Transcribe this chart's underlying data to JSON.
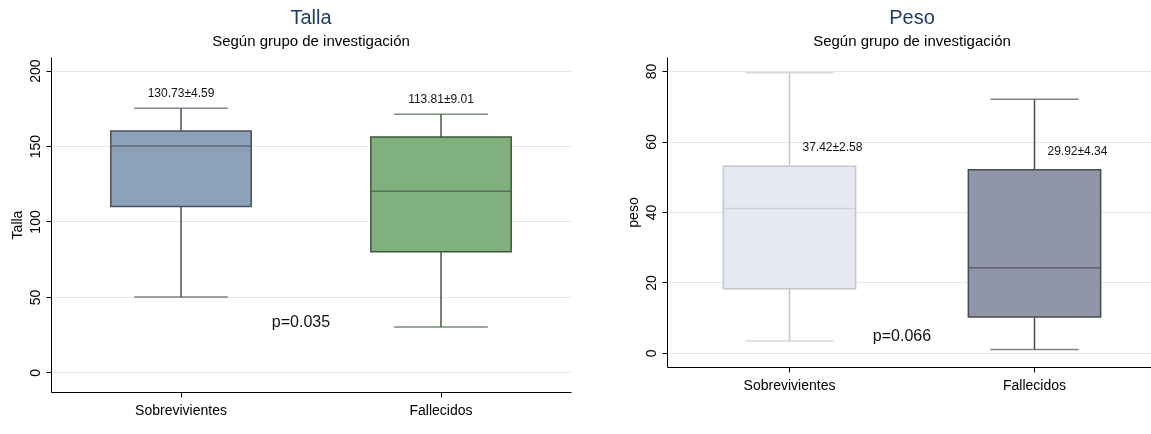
{
  "chart_data": [
    {
      "type": "box",
      "title": "Talla",
      "subtitle": "Según grupo de investigación",
      "ylabel": "Talla",
      "categories": [
        "Sobrevivientes",
        "Fallecidos"
      ],
      "boxes": [
        {
          "low": 50,
          "q1": 110,
          "median": 150,
          "q3": 160,
          "high": 175
        },
        {
          "low": 30,
          "q1": 80,
          "median": 120,
          "q3": 156,
          "high": 171
        }
      ],
      "colors": [
        "#8da2b8",
        "#80b07e"
      ],
      "ylim": [
        -13,
        209
      ],
      "yticks": [
        0,
        50,
        100,
        150,
        200
      ],
      "grid": "y",
      "annotations": [
        "130.73±4.59",
        "113.81±9.01",
        "p=0.035"
      ]
    },
    {
      "type": "box",
      "title": "Peso",
      "subtitle": "Según grupo de investigación",
      "ylabel": "peso",
      "categories": [
        "Sobrevivientes",
        "Fallecidos"
      ],
      "boxes": [
        {
          "low": 3.4,
          "q1": 18.2,
          "median": 41,
          "q3": 53,
          "high": 79.5
        },
        {
          "low": 1,
          "q1": 10.2,
          "median": 24.2,
          "q3": 52,
          "high": 72
        }
      ],
      "colors": [
        "#e7e9f2",
        "#9096a8"
      ],
      "ylim": [
        -4,
        84
      ],
      "yticks": [
        0,
        20,
        40,
        60,
        80
      ],
      "grid": "y",
      "annotations": [
        "37.42±2.58",
        "29.92±4.34",
        "p=0.066"
      ]
    }
  ]
}
